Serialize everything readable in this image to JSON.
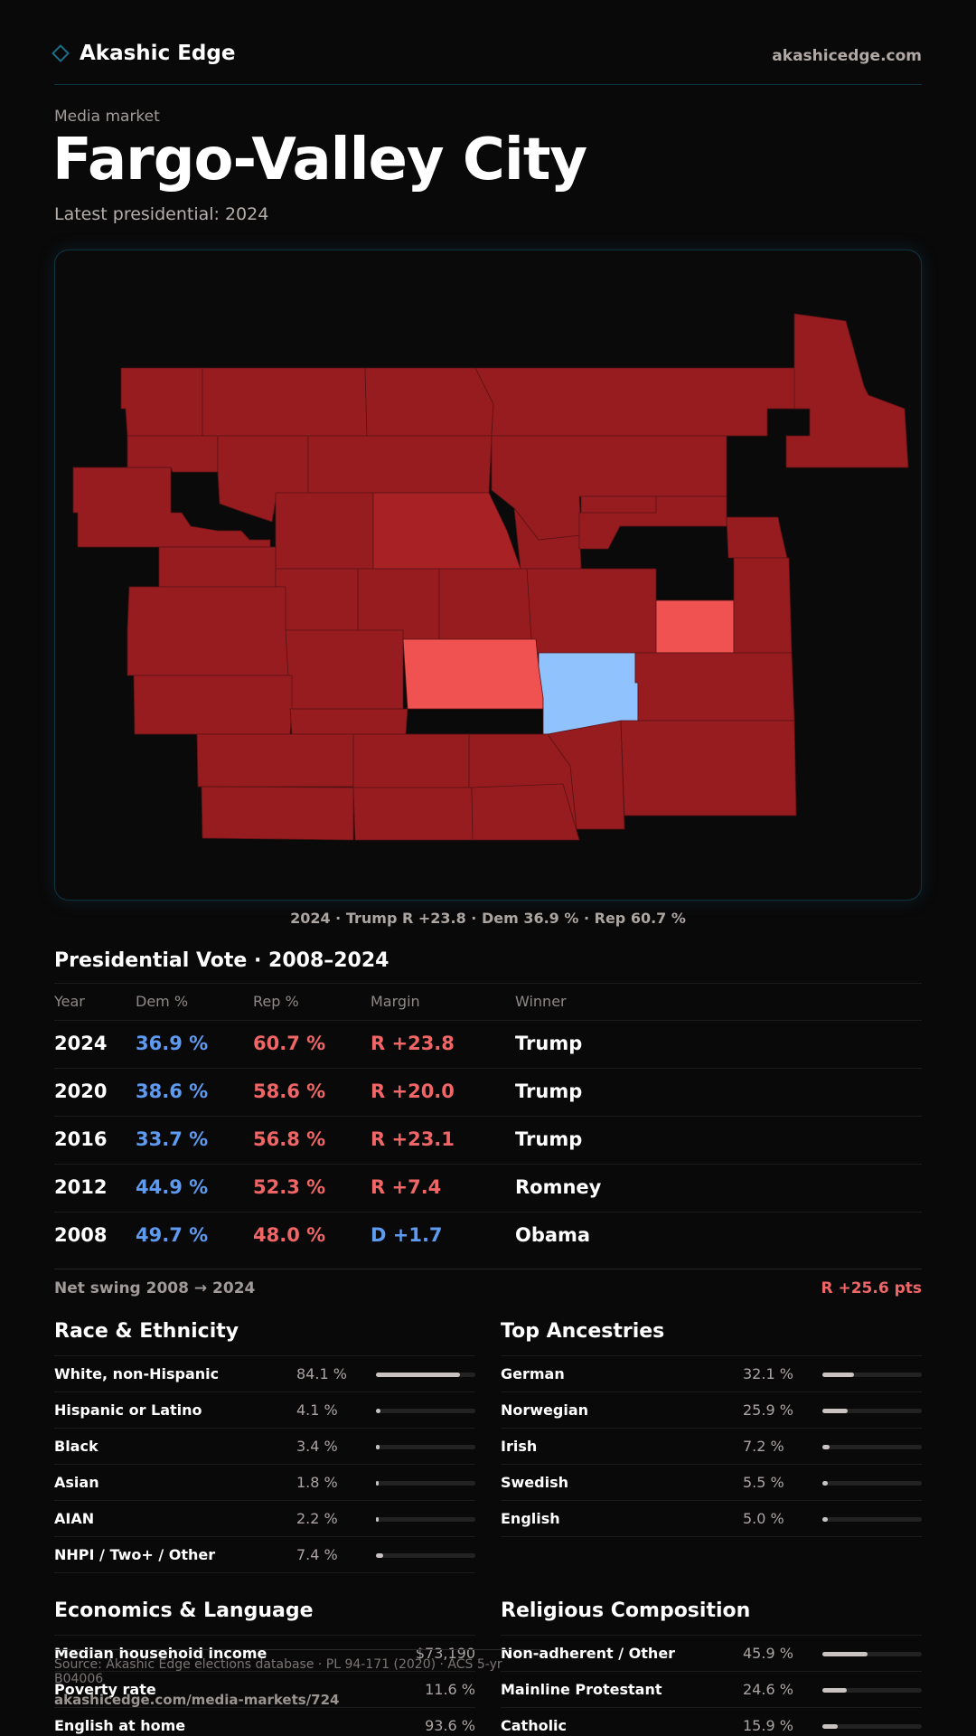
{
  "brand": {
    "name": "Akashic Edge",
    "url": "akashicedge.com",
    "icon": "diamond-icon"
  },
  "eyebrow": "Media market",
  "title": "Fargo-Valley City",
  "subtitle": "Latest presidential: 2024",
  "map": {
    "caption": "2024 · Trump R +23.8 · Dem 36.9 % · Rep 60.7 %",
    "colors": {
      "safe_r": "#961c1f",
      "likely_r": "#a82225",
      "lean_r": "#f05252",
      "lean_d": "#90c2fd",
      "border": "#5a1214"
    }
  },
  "vote": {
    "title": "Presidential Vote · 2008–2024",
    "headers": {
      "year": "Year",
      "dem": "Dem %",
      "rep": "Rep %",
      "margin": "Margin",
      "winner": "Winner"
    },
    "rows": [
      {
        "year": "2024",
        "dem": "36.9 %",
        "rep": "60.7 %",
        "margin": "R +23.8",
        "winner": "Trump"
      },
      {
        "year": "2020",
        "dem": "38.6 %",
        "rep": "58.6 %",
        "margin": "R +20.0",
        "winner": "Trump"
      },
      {
        "year": "2016",
        "dem": "33.7 %",
        "rep": "56.8 %",
        "margin": "R +23.1",
        "winner": "Trump"
      },
      {
        "year": "2012",
        "dem": "44.9 %",
        "rep": "52.3 %",
        "margin": "R +7.4",
        "winner": "Romney"
      },
      {
        "year": "2008",
        "dem": "49.7 %",
        "rep": "48.0 %",
        "margin": "D +1.7",
        "winner": "Obama"
      }
    ],
    "swing_label": "Net swing 2008 → 2024",
    "swing_value": "R +25.6 pts"
  },
  "race": {
    "title": "Race & Ethnicity",
    "rows": [
      {
        "label": "White, non-Hispanic",
        "value": "84.1 %",
        "pct": 84.1
      },
      {
        "label": "Hispanic or Latino",
        "value": "4.1 %",
        "pct": 4.1
      },
      {
        "label": "Black",
        "value": "3.4 %",
        "pct": 3.4
      },
      {
        "label": "Asian",
        "value": "1.8 %",
        "pct": 1.8
      },
      {
        "label": "AIAN",
        "value": "2.2 %",
        "pct": 2.2
      },
      {
        "label": "NHPI / Two+ / Other",
        "value": "7.4 %",
        "pct": 7.4
      }
    ]
  },
  "ancestry": {
    "title": "Top Ancestries",
    "rows": [
      {
        "label": "German",
        "value": "32.1 %",
        "pct": 32.1
      },
      {
        "label": "Norwegian",
        "value": "25.9 %",
        "pct": 25.9
      },
      {
        "label": "Irish",
        "value": "7.2 %",
        "pct": 7.2
      },
      {
        "label": "Swedish",
        "value": "5.5 %",
        "pct": 5.5
      },
      {
        "label": "English",
        "value": "5.0 %",
        "pct": 5.0
      }
    ]
  },
  "economics": {
    "title": "Economics & Language",
    "rows": [
      {
        "label": "Median household income",
        "value": "$73,190"
      },
      {
        "label": "Poverty rate",
        "value": "11.6 %"
      },
      {
        "label": "English at home",
        "value": "93.6 %"
      }
    ]
  },
  "religion": {
    "title": "Religious Composition",
    "rows": [
      {
        "label": "Non-adherent / Other",
        "value": "45.9 %",
        "pct": 45.9
      },
      {
        "label": "Mainline Protestant",
        "value": "24.6 %",
        "pct": 24.6
      },
      {
        "label": "Catholic",
        "value": "15.9 %",
        "pct": 15.9
      }
    ]
  },
  "footer": {
    "source": "Source: Akashic Edge elections database · PL 94-171 (2020) · ACS 5-yr B04006",
    "url": "akashicedge.com/media-markets/724"
  }
}
